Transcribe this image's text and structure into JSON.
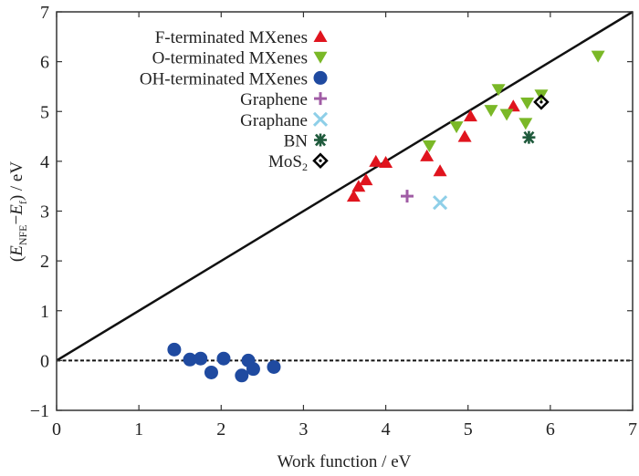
{
  "chart_data": {
    "type": "scatter",
    "title": "",
    "xlabel": "Work function / eV",
    "ylabel": {
      "prefix": "(",
      "E1": "E",
      "sub1": "NFE",
      "minus": "−",
      "E2": "E",
      "sub2": "f",
      "suffix": ") / eV"
    },
    "xlim": [
      0,
      7
    ],
    "ylim": [
      -1,
      7
    ],
    "xticks": [
      "0",
      "1",
      "2",
      "3",
      "4",
      "5",
      "6",
      "7"
    ],
    "yticks": [
      "−1",
      "0",
      "1",
      "2",
      "3",
      "4",
      "5",
      "6",
      "7"
    ],
    "grid": false,
    "legend_position": "top-left",
    "reference_lines": [
      {
        "name": "y=x",
        "style": "solid",
        "points": [
          [
            0,
            0
          ],
          [
            7,
            7
          ]
        ]
      },
      {
        "name": "y=0",
        "style": "dashed",
        "points": [
          [
            0,
            0
          ],
          [
            7,
            0
          ]
        ]
      }
    ],
    "series": [
      {
        "name": "F-terminated MXenes",
        "marker": "triangle-up",
        "color": "#e0141e",
        "points": [
          [
            3.61,
            3.3
          ],
          [
            3.67,
            3.5
          ],
          [
            3.76,
            3.63
          ],
          [
            3.88,
            4.0
          ],
          [
            4.0,
            3.98
          ],
          [
            4.5,
            4.11
          ],
          [
            4.66,
            3.81
          ],
          [
            4.96,
            4.5
          ],
          [
            5.03,
            4.91
          ],
          [
            5.55,
            5.11
          ]
        ]
      },
      {
        "name": "O-terminated MXenes",
        "marker": "triangle-down",
        "color": "#7ab827",
        "points": [
          [
            4.53,
            4.31
          ],
          [
            4.86,
            4.69
          ],
          [
            5.28,
            5.02
          ],
          [
            5.37,
            5.44
          ],
          [
            5.47,
            4.94
          ],
          [
            5.7,
            4.76
          ],
          [
            5.72,
            5.17
          ],
          [
            5.89,
            5.33
          ],
          [
            6.58,
            6.11
          ]
        ]
      },
      {
        "name": "OH-terminated MXenes",
        "marker": "circle",
        "color": "#1f4aa0",
        "points": [
          [
            1.43,
            0.22
          ],
          [
            1.62,
            0.02
          ],
          [
            1.75,
            0.04
          ],
          [
            1.88,
            -0.24
          ],
          [
            2.03,
            0.04
          ],
          [
            2.25,
            -0.3
          ],
          [
            2.33,
            0.0
          ],
          [
            2.39,
            -0.17
          ],
          [
            2.64,
            -0.13
          ]
        ]
      },
      {
        "name": "Graphene",
        "marker": "plus",
        "color": "#a05ca5",
        "points": [
          [
            4.26,
            3.3
          ]
        ]
      },
      {
        "name": "Graphane",
        "marker": "cross",
        "color": "#8ecfe8",
        "points": [
          [
            4.66,
            3.17
          ]
        ]
      },
      {
        "name": "BN",
        "marker": "asterisk",
        "color": "#1f5a3c",
        "points": [
          [
            5.74,
            4.48
          ]
        ]
      },
      {
        "name": "MoS2",
        "label_base": "MoS",
        "label_sub": "2",
        "marker": "diamond-dot",
        "color": "#000000",
        "points": [
          [
            5.89,
            5.19
          ]
        ]
      }
    ]
  }
}
